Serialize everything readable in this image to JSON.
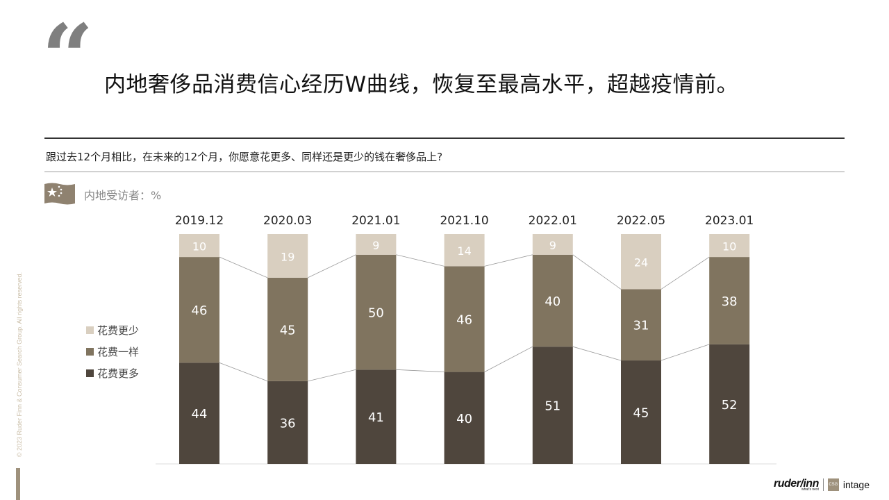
{
  "header": {
    "quote_mark": "“",
    "headline": "内地奢侈品消费信心经历W曲线，恢复至最高水平，超越疫情前。",
    "question": "跟过去12个月相比，在未来的12个月，你愿意花更多、同样还是更少的钱在奢侈品上?",
    "respondents_label": "内地受访者：%"
  },
  "footer": {
    "copyright": "© 2023 Ruder Finn & Consumer Search Group. All rights reserved.",
    "logo_ruderfinn": "ruder/inn",
    "logo_ruderfinn_tagline": "what's next",
    "logo_csg": "CSG",
    "logo_intage": "intage"
  },
  "colors": {
    "less": "#d9cfc0",
    "same": "#80745f",
    "more": "#4f463d",
    "connector": "#9a9a9a",
    "flag": "#8f8270"
  },
  "legend": [
    {
      "key": "less",
      "label": "花费更少"
    },
    {
      "key": "same",
      "label": "花费一样"
    },
    {
      "key": "more",
      "label": "花费更多"
    }
  ],
  "chart_data": {
    "type": "bar",
    "stacked": true,
    "categories": [
      "2019.12",
      "2020.03",
      "2021.01",
      "2021.10",
      "2022.01",
      "2022.05",
      "2023.01"
    ],
    "series": [
      {
        "name": "花费更多",
        "key": "more",
        "values": [
          44,
          36,
          41,
          40,
          51,
          45,
          52
        ]
      },
      {
        "name": "花费一样",
        "key": "same",
        "values": [
          46,
          45,
          50,
          46,
          40,
          31,
          38
        ]
      },
      {
        "name": "花费更少",
        "key": "less",
        "values": [
          10,
          19,
          9,
          14,
          9,
          24,
          10
        ]
      }
    ],
    "ylim": [
      0,
      100
    ],
    "legend_position": "left",
    "grid": false
  }
}
